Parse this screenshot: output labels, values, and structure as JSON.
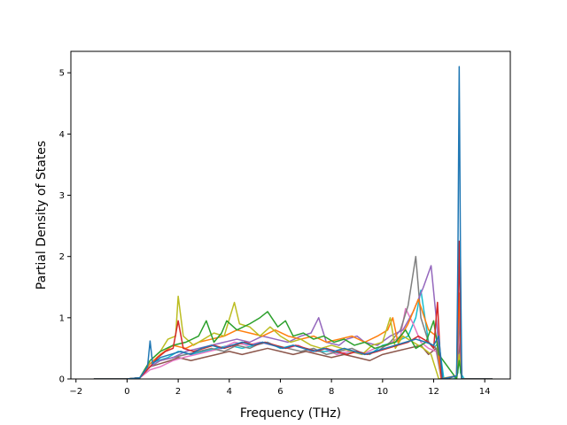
{
  "chart_data": {
    "type": "line",
    "title": "",
    "xlabel": "Frequency (THz)",
    "ylabel": "Partial Density of States",
    "xlim": [
      -2.2,
      15.0
    ],
    "ylim": [
      0,
      5.35
    ],
    "xticks": [
      -2,
      0,
      2,
      4,
      6,
      8,
      10,
      12,
      14
    ],
    "xtick_labels": [
      "−2",
      "0",
      "2",
      "4",
      "6",
      "8",
      "10",
      "12",
      "14"
    ],
    "yticks": [
      0,
      1,
      2,
      3,
      4,
      5
    ],
    "ytick_labels": [
      "0",
      "1",
      "2",
      "3",
      "4",
      "5"
    ],
    "grid": false,
    "legend": "none",
    "series_count": 10,
    "series_colors": [
      "#1f77b4",
      "#ff7f0e",
      "#2ca02c",
      "#d62728",
      "#9467bd",
      "#8c564b",
      "#e377c2",
      "#7f7f7f",
      "#bcbd22",
      "#17becf"
    ],
    "series": [
      {
        "color": "#17becf",
        "x": [
          -1.3,
          0.0,
          0.5,
          0.9,
          1.2,
          1.6,
          2.0,
          2.5,
          3.0,
          3.5,
          4.0,
          4.5,
          5.0,
          5.5,
          6.0,
          6.5,
          7.0,
          7.5,
          8.0,
          8.5,
          9.0,
          9.5,
          10.0,
          10.5,
          11.0,
          11.3,
          11.5,
          11.8,
          12.0,
          12.2,
          12.4,
          12.6,
          12.8,
          12.95,
          13.0,
          13.05,
          13.2,
          14.0,
          14.3
        ],
        "y": [
          0,
          0,
          0.02,
          0.25,
          0.3,
          0.35,
          0.45,
          0.4,
          0.45,
          0.5,
          0.55,
          0.5,
          0.55,
          0.6,
          0.5,
          0.55,
          0.5,
          0.45,
          0.45,
          0.4,
          0.45,
          0.4,
          0.55,
          0.6,
          0.7,
          1.0,
          1.45,
          0.6,
          0.5,
          0.6,
          0,
          0,
          0,
          0.1,
          0.9,
          0.1,
          0,
          0,
          0
        ]
      },
      {
        "color": "#8c564b",
        "x": [
          -1.3,
          0.0,
          0.5,
          0.9,
          1.3,
          1.7,
          2.0,
          2.5,
          3.0,
          3.5,
          4.0,
          4.5,
          5.0,
          5.5,
          6.0,
          6.5,
          7.0,
          7.5,
          8.0,
          8.5,
          9.0,
          9.5,
          10.0,
          10.5,
          11.0,
          11.5,
          11.8,
          12.1,
          12.3,
          12.5,
          12.9,
          13.0,
          13.1,
          14.3
        ],
        "y": [
          0,
          0,
          0.02,
          0.2,
          0.25,
          0.3,
          0.35,
          0.3,
          0.35,
          0.4,
          0.45,
          0.4,
          0.45,
          0.5,
          0.45,
          0.4,
          0.45,
          0.4,
          0.35,
          0.4,
          0.35,
          0.3,
          0.4,
          0.45,
          0.5,
          0.55,
          0.4,
          0.5,
          0,
          0,
          0.05,
          0.6,
          0,
          0
        ]
      },
      {
        "color": "#e377c2",
        "x": [
          -1.3,
          0.0,
          0.5,
          0.9,
          1.3,
          1.8,
          2.2,
          2.7,
          3.2,
          3.7,
          4.2,
          4.7,
          5.2,
          5.7,
          6.2,
          6.7,
          7.2,
          7.7,
          8.2,
          8.7,
          9.2,
          9.7,
          10.2,
          10.7,
          10.9,
          11.2,
          11.5,
          11.8,
          12.1,
          12.3,
          12.9,
          13.0,
          13.1,
          14.3
        ],
        "y": [
          0,
          0,
          0.02,
          0.15,
          0.2,
          0.3,
          0.35,
          0.4,
          0.45,
          0.5,
          0.6,
          0.55,
          0.6,
          0.55,
          0.5,
          0.55,
          0.45,
          0.5,
          0.4,
          0.45,
          0.4,
          0.5,
          0.55,
          0.7,
          1.15,
          0.9,
          0.6,
          0.5,
          0.45,
          0,
          0.05,
          0.8,
          0,
          0
        ]
      },
      {
        "color": "#7f7f7f",
        "x": [
          -1.3,
          0.0,
          0.5,
          0.9,
          1.3,
          1.8,
          2.3,
          2.8,
          3.3,
          3.8,
          4.3,
          4.8,
          5.3,
          5.8,
          6.3,
          6.8,
          7.3,
          7.8,
          8.3,
          8.8,
          9.3,
          9.8,
          10.3,
          10.7,
          11.0,
          11.3,
          11.5,
          11.8,
          12.1,
          12.3,
          12.9,
          13.0,
          13.1,
          14.3
        ],
        "y": [
          0,
          0,
          0.02,
          0.2,
          0.3,
          0.35,
          0.4,
          0.45,
          0.5,
          0.45,
          0.55,
          0.5,
          0.6,
          0.55,
          0.5,
          0.45,
          0.5,
          0.4,
          0.45,
          0.5,
          0.4,
          0.45,
          0.6,
          0.8,
          1.2,
          2.0,
          1.0,
          0.6,
          0.5,
          0,
          0.05,
          1.0,
          0,
          0
        ]
      },
      {
        "color": "#9467bd",
        "x": [
          -1.3,
          0.0,
          0.5,
          0.9,
          1.3,
          1.8,
          2.3,
          2.8,
          3.3,
          3.8,
          4.3,
          4.8,
          5.3,
          5.8,
          6.3,
          6.8,
          7.2,
          7.5,
          7.8,
          8.3,
          8.6,
          9.0,
          9.3,
          9.8,
          10.3,
          10.8,
          11.2,
          11.6,
          11.9,
          12.1,
          12.3,
          12.9,
          13.0,
          13.1,
          14.3
        ],
        "y": [
          0,
          0,
          0.02,
          0.2,
          0.3,
          0.35,
          0.45,
          0.5,
          0.55,
          0.6,
          0.65,
          0.6,
          0.7,
          0.65,
          0.6,
          0.7,
          0.75,
          1.0,
          0.6,
          0.55,
          0.65,
          0.7,
          0.6,
          0.55,
          0.7,
          0.8,
          1.1,
          1.5,
          1.85,
          1.0,
          0,
          0.05,
          1.2,
          0,
          0
        ]
      },
      {
        "color": "#ff7f0e",
        "x": [
          -1.3,
          0.0,
          0.5,
          0.9,
          1.3,
          1.8,
          2.3,
          2.8,
          3.3,
          3.8,
          4.3,
          4.8,
          5.3,
          5.8,
          6.3,
          6.8,
          7.3,
          7.8,
          8.3,
          8.8,
          9.3,
          9.8,
          10.2,
          10.4,
          10.6,
          11.0,
          11.4,
          11.8,
          12.1,
          12.3,
          12.9,
          13.0,
          13.1,
          14.3
        ],
        "y": [
          0,
          0,
          0.02,
          0.25,
          0.4,
          0.55,
          0.5,
          0.6,
          0.65,
          0.7,
          0.8,
          0.75,
          0.7,
          0.8,
          0.7,
          0.65,
          0.7,
          0.6,
          0.65,
          0.7,
          0.6,
          0.7,
          0.8,
          1.0,
          0.6,
          0.9,
          1.3,
          0.8,
          0.7,
          0,
          0.05,
          1.4,
          0,
          0
        ]
      },
      {
        "color": "#bcbd22",
        "x": [
          -1.3,
          0.0,
          0.5,
          0.9,
          1.3,
          1.6,
          1.9,
          2.0,
          2.2,
          2.6,
          3.0,
          3.4,
          3.8,
          4.2,
          4.4,
          4.8,
          5.2,
          5.6,
          6.0,
          6.4,
          6.8,
          7.2,
          7.6,
          8.0,
          8.4,
          8.8,
          9.2,
          9.6,
          10.0,
          10.3,
          10.5,
          10.8,
          11.2,
          11.6,
          11.9,
          12.2,
          12.9,
          13.0,
          13.1,
          14.3
        ],
        "y": [
          0,
          0,
          0.02,
          0.3,
          0.45,
          0.65,
          0.7,
          1.35,
          0.7,
          0.55,
          0.65,
          0.75,
          0.7,
          1.25,
          0.9,
          0.85,
          0.7,
          0.85,
          0.7,
          0.6,
          0.65,
          0.55,
          0.5,
          0.55,
          0.5,
          0.45,
          0.4,
          0.55,
          0.6,
          1.0,
          0.5,
          0.7,
          0.6,
          0.5,
          0.4,
          0,
          0.05,
          0.4,
          0,
          0
        ]
      },
      {
        "color": "#2ca02c",
        "x": [
          -1.3,
          0.0,
          0.5,
          0.9,
          1.3,
          1.8,
          2.3,
          2.8,
          3.1,
          3.4,
          3.7,
          3.9,
          4.3,
          4.8,
          5.2,
          5.5,
          5.9,
          6.2,
          6.5,
          6.9,
          7.3,
          7.7,
          8.1,
          8.5,
          8.9,
          9.3,
          9.7,
          10.1,
          10.5,
          10.9,
          11.3,
          11.7,
          12.0,
          12.2,
          12.9,
          13.0,
          13.1,
          14.3
        ],
        "y": [
          0,
          0,
          0.02,
          0.3,
          0.45,
          0.55,
          0.6,
          0.7,
          0.95,
          0.6,
          0.75,
          0.95,
          0.8,
          0.9,
          1.0,
          1.1,
          0.85,
          0.95,
          0.7,
          0.75,
          0.65,
          0.7,
          0.6,
          0.65,
          0.55,
          0.6,
          0.5,
          0.55,
          0.6,
          0.8,
          0.5,
          0.6,
          0.95,
          0.4,
          0,
          0.3,
          0,
          0
        ]
      },
      {
        "color": "#d62728",
        "x": [
          -1.3,
          0.0,
          0.5,
          0.9,
          1.2,
          1.5,
          1.8,
          2.0,
          2.2,
          2.6,
          3.0,
          3.4,
          3.8,
          4.2,
          4.6,
          5.0,
          5.4,
          5.8,
          6.2,
          6.6,
          7.0,
          7.4,
          7.8,
          8.2,
          8.6,
          9.0,
          9.4,
          9.8,
          10.2,
          10.6,
          11.0,
          11.4,
          11.8,
          12.0,
          12.15,
          12.3,
          12.9,
          12.95,
          13.0,
          13.05,
          13.1,
          14.3
        ],
        "y": [
          0,
          0,
          0.02,
          0.2,
          0.35,
          0.45,
          0.5,
          0.95,
          0.5,
          0.45,
          0.5,
          0.55,
          0.5,
          0.55,
          0.6,
          0.55,
          0.6,
          0.55,
          0.5,
          0.55,
          0.5,
          0.45,
          0.5,
          0.45,
          0.4,
          0.45,
          0.4,
          0.45,
          0.5,
          0.55,
          0.6,
          0.7,
          0.6,
          0.5,
          1.25,
          0,
          0.05,
          1.0,
          2.25,
          0.8,
          0,
          0
        ]
      },
      {
        "color": "#1f77b4",
        "x": [
          -1.3,
          0.0,
          0.5,
          0.8,
          0.9,
          1.0,
          1.3,
          1.7,
          2.1,
          2.5,
          2.9,
          3.3,
          3.7,
          4.1,
          4.5,
          4.9,
          5.3,
          5.7,
          6.1,
          6.5,
          6.9,
          7.3,
          7.7,
          8.1,
          8.5,
          8.9,
          9.3,
          9.7,
          10.1,
          10.5,
          10.9,
          11.3,
          11.7,
          12.0,
          12.2,
          12.35,
          12.9,
          12.95,
          13.0,
          13.05,
          13.1,
          14.3
        ],
        "y": [
          0,
          0,
          0.02,
          0.2,
          0.62,
          0.25,
          0.35,
          0.4,
          0.45,
          0.4,
          0.5,
          0.55,
          0.5,
          0.55,
          0.6,
          0.55,
          0.6,
          0.55,
          0.5,
          0.55,
          0.5,
          0.45,
          0.5,
          0.45,
          0.5,
          0.45,
          0.4,
          0.45,
          0.5,
          0.55,
          0.6,
          0.65,
          0.6,
          0.55,
          0.7,
          0,
          0.05,
          2.0,
          5.1,
          2.0,
          0,
          0
        ]
      }
    ]
  }
}
